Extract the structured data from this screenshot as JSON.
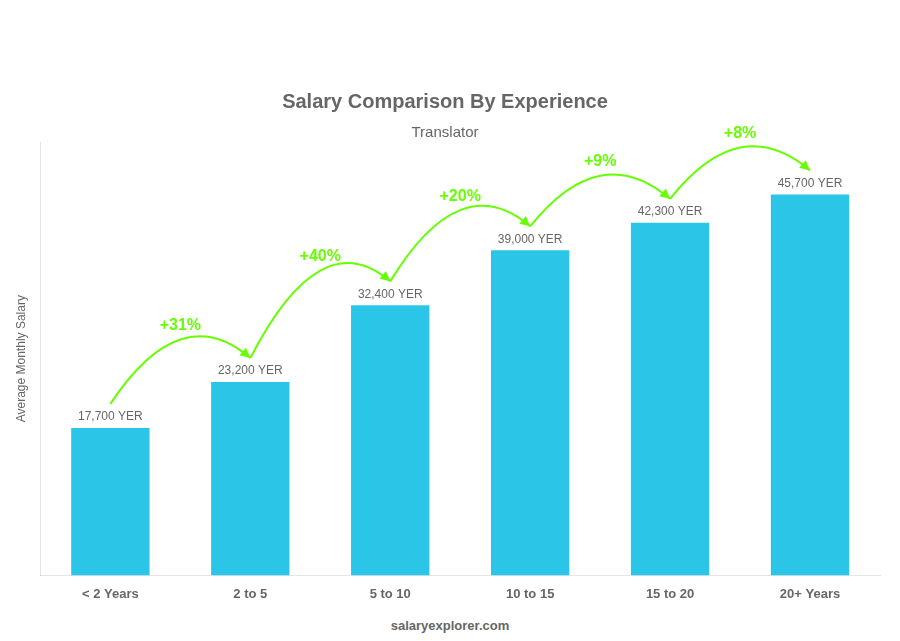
{
  "chart_data": {
    "type": "bar",
    "title": "Salary Comparison By Experience",
    "subtitle": "Translator",
    "categories": [
      "< 2 Years",
      "2 to 5",
      "5 to 10",
      "10 to 15",
      "15 to 20",
      "20+ Years"
    ],
    "values": [
      17700,
      23200,
      32400,
      39000,
      42300,
      45700
    ],
    "value_labels": [
      "17,700 YER",
      "23,200 YER",
      "32,400 YER",
      "39,000 YER",
      "42,300 YER",
      "45,700 YER"
    ],
    "data_labels": true,
    "color": "#2BC5E8",
    "ylabel": "Average Monthly Salary",
    "ylim": [
      0,
      52000
    ],
    "grid": false,
    "tick_labels": "x",
    "annotations": [
      {
        "text": "+31%",
        "color": "#66ff00"
      },
      {
        "text": "+40%",
        "color": "#66ff00"
      },
      {
        "text": "+20%",
        "color": "#66ff00"
      },
      {
        "text": "+9%",
        "color": "#66ff00"
      },
      {
        "text": "+8%",
        "color": "#66ff00"
      }
    ],
    "footer": "salaryexplorer.com"
  }
}
